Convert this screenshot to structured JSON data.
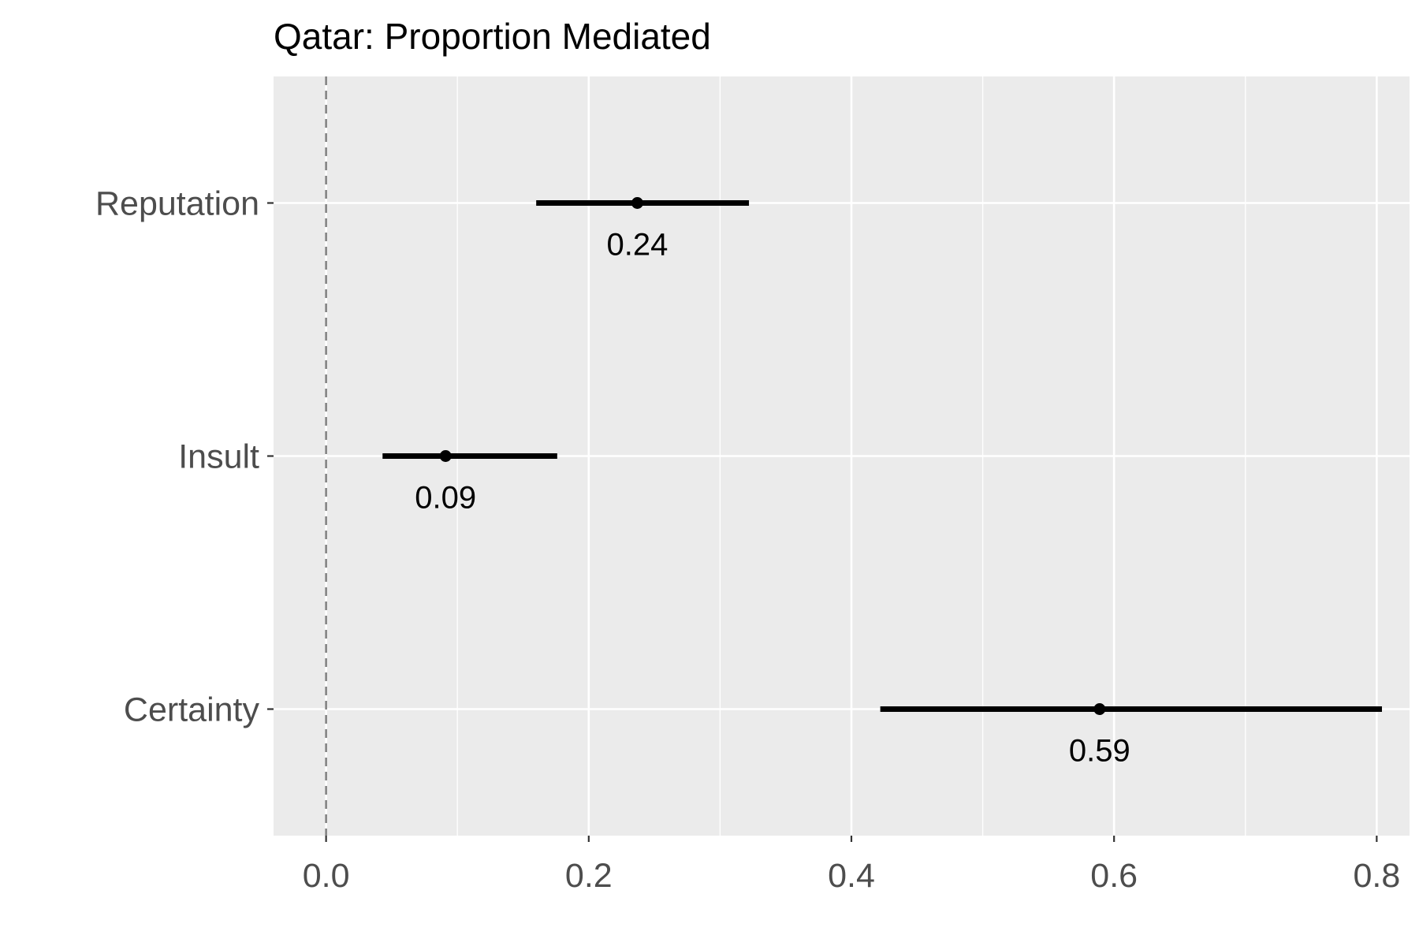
{
  "chart_data": {
    "type": "scatter",
    "title": "Qatar: Proportion Mediated",
    "xlabel": "",
    "ylabel": "",
    "xlim": [
      -0.04,
      0.825
    ],
    "x_ticks": [
      "0.0",
      "0.2",
      "0.4",
      "0.6",
      "0.8"
    ],
    "x_tick_values": [
      0.0,
      0.2,
      0.4,
      0.6,
      0.8
    ],
    "reference_line": 0,
    "grid": true,
    "categories": [
      "Reputation",
      "Insult",
      "Certainty"
    ],
    "points": [
      {
        "category": "Reputation",
        "estimate": 0.237,
        "lower": 0.16,
        "upper": 0.322,
        "label": "0.24"
      },
      {
        "category": "Insult",
        "estimate": 0.091,
        "lower": 0.043,
        "upper": 0.176,
        "label": "0.09"
      },
      {
        "category": "Certainty",
        "estimate": 0.589,
        "lower": 0.422,
        "upper": 0.804,
        "label": "0.59"
      }
    ],
    "colors": {
      "panel": "#ebebeb",
      "grid": "#ffffff",
      "marks": "#000000",
      "reference": "#7f7f7f",
      "tick_text": "#4d4d4d"
    }
  }
}
